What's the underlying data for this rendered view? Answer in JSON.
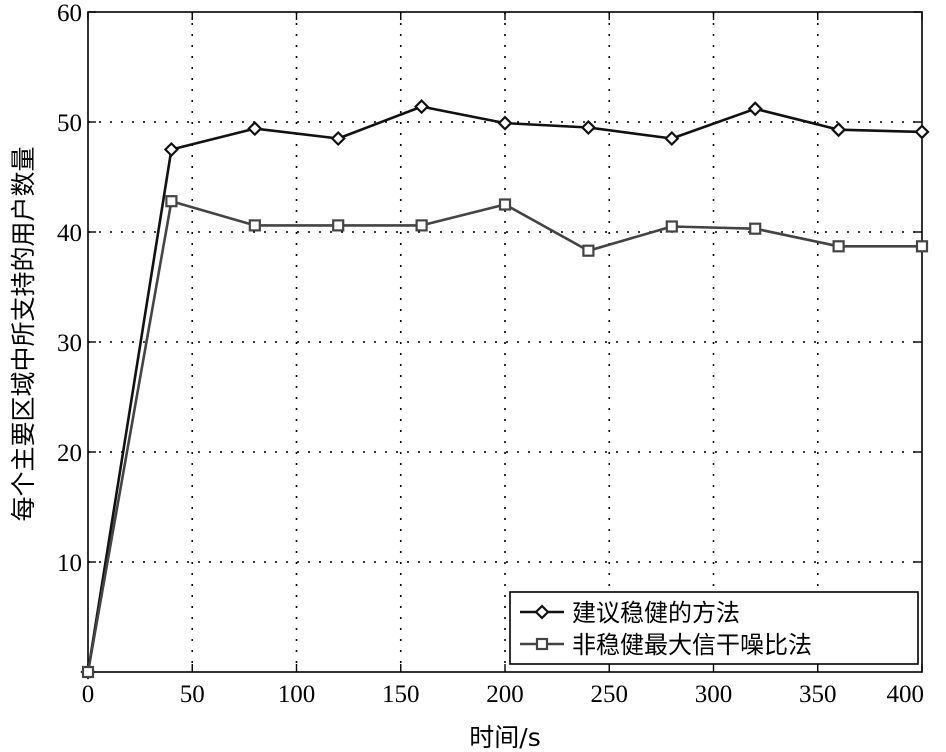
{
  "chart_data": {
    "type": "line",
    "xlabel": "时间/s",
    "ylabel": "每个主要区域中所支持的用户数量",
    "xlim": [
      0,
      400
    ],
    "ylim": [
      0,
      60
    ],
    "xticks": [
      0,
      50,
      100,
      150,
      200,
      250,
      300,
      350,
      400
    ],
    "xtick_labels": [
      "0",
      "50",
      "100",
      "150",
      "200",
      "250",
      "300",
      "350",
      "400"
    ],
    "yticks": [
      10,
      20,
      30,
      40,
      50,
      60
    ],
    "ytick_labels": [
      "10",
      "20",
      "30",
      "40",
      "50",
      "60"
    ],
    "grid": true,
    "legend_position": "bottom-right",
    "series": [
      {
        "name": "建议稳健的方法",
        "marker": "diamond",
        "color": "#111111",
        "x": [
          0,
          40,
          80,
          120,
          160,
          200,
          240,
          280,
          320,
          360,
          400
        ],
        "y": [
          0,
          47.5,
          49.4,
          48.5,
          51.4,
          49.9,
          49.5,
          48.5,
          51.2,
          49.3,
          49.1
        ]
      },
      {
        "name": "非稳健最大信干噪比法",
        "marker": "square",
        "color": "#444444",
        "x": [
          0,
          40,
          80,
          120,
          160,
          200,
          240,
          280,
          320,
          360,
          400
        ],
        "y": [
          0,
          42.8,
          40.6,
          40.6,
          40.6,
          42.5,
          38.3,
          40.5,
          40.3,
          38.7,
          38.7
        ]
      }
    ]
  }
}
